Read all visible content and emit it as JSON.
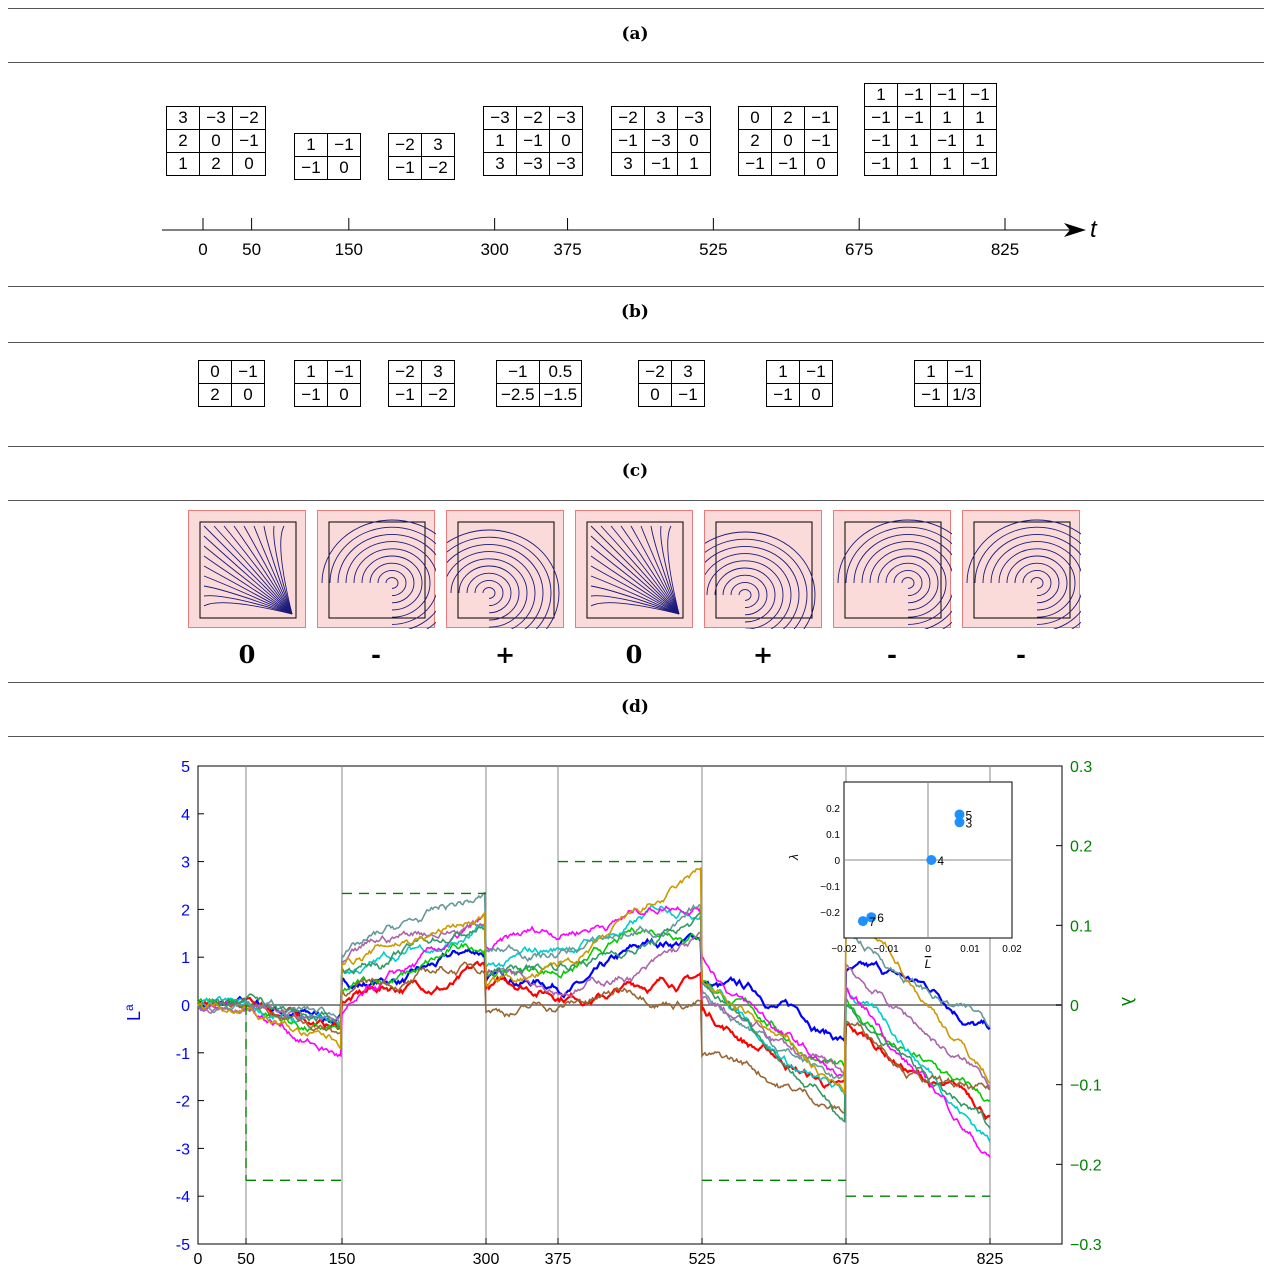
{
  "panels": {
    "a": "(a)",
    "b": "(b)",
    "c": "(c)",
    "d": "(d)"
  },
  "panel_a": {
    "axis_label": "t",
    "ticks": [
      "0",
      "50",
      "150",
      "300",
      "375",
      "525",
      "675",
      "825"
    ],
    "tick_values": [
      0,
      50,
      150,
      300,
      375,
      525,
      675,
      825
    ],
    "matrices": [
      [
        [
          "3",
          "−3",
          "−2"
        ],
        [
          "2",
          "0",
          "−1"
        ],
        [
          "1",
          "2",
          "0"
        ]
      ],
      [
        [
          "1",
          "−1"
        ],
        [
          "−1",
          "0"
        ]
      ],
      [
        [
          "−2",
          "3"
        ],
        [
          "−1",
          "−2"
        ]
      ],
      [
        [
          "−3",
          "−2",
          "−3"
        ],
        [
          "1",
          "−1",
          "0"
        ],
        [
          "3",
          "−3",
          "−3"
        ]
      ],
      [
        [
          "−2",
          "3",
          "−3"
        ],
        [
          "−1",
          "−3",
          "0"
        ],
        [
          "3",
          "−1",
          "1"
        ]
      ],
      [
        [
          "0",
          "2",
          "−1"
        ],
        [
          "2",
          "0",
          "−1"
        ],
        [
          "−1",
          "−1",
          "0"
        ]
      ],
      [
        [
          "1",
          "−1",
          "−1",
          "−1"
        ],
        [
          "−1",
          "−1",
          "1",
          "1"
        ],
        [
          "−1",
          "1",
          "−1",
          "1"
        ],
        [
          "−1",
          "1",
          "1",
          "−1"
        ]
      ]
    ]
  },
  "panel_b": {
    "matrices": [
      [
        [
          "0",
          "−1"
        ],
        [
          "2",
          "0"
        ]
      ],
      [
        [
          "1",
          "−1"
        ],
        [
          "−1",
          "0"
        ]
      ],
      [
        [
          "−2",
          "3"
        ],
        [
          "−1",
          "−2"
        ]
      ],
      [
        [
          "−1",
          "0.5"
        ],
        [
          "−2.5",
          "−1.5"
        ]
      ],
      [
        [
          "−2",
          "3"
        ],
        [
          "0",
          "−1"
        ]
      ],
      [
        [
          "1",
          "−1"
        ],
        [
          "−1",
          "0"
        ]
      ],
      [
        [
          "1",
          "−1"
        ],
        [
          "−1",
          "1/3"
        ]
      ]
    ]
  },
  "panel_c": {
    "signs": [
      "0",
      "-",
      "+",
      "0",
      "+",
      "-",
      "-"
    ],
    "flow_types": [
      "diag",
      "vortex",
      "vortex-high",
      "diag",
      "vortex-low",
      "vortex",
      "vortex"
    ]
  },
  "chart_data": [
    {
      "type": "line",
      "xlabel": "t",
      "ylabel_left": "L",
      "ylabel_left_sup": "a",
      "ylabel_right": "λ",
      "xlim": [
        0,
        900
      ],
      "ylim_left": [
        -5,
        5
      ],
      "ylim_right": [
        -0.3,
        0.3
      ],
      "xticks": [
        0,
        50,
        150,
        300,
        375,
        525,
        675,
        825
      ],
      "yticks_left": [
        5,
        4,
        3,
        2,
        1,
        0,
        -1,
        -2,
        -3,
        -4,
        -5
      ],
      "yticks_right": [
        "0.3",
        "0.2",
        "0.1",
        "0",
        "−0.1",
        "−0.2",
        "−0.3"
      ],
      "left_color": "#0000ff",
      "right_color": "#008000",
      "lambda_steps": [
        {
          "t0": 50,
          "t1": 150,
          "value": -0.22
        },
        {
          "t0": 150,
          "t1": 300,
          "value": 0.14
        },
        {
          "t0": 375,
          "t1": 525,
          "value": 0.18
        },
        {
          "t0": 525,
          "t1": 675,
          "value": -0.22
        },
        {
          "t0": 675,
          "t1": 825,
          "value": -0.24
        }
      ],
      "series_colors": [
        "#0000ff",
        "#ff0000",
        "#00cc00",
        "#00cccc",
        "#ff00ff",
        "#996633",
        "#669999",
        "#aa66aa",
        "#339966",
        "#cc9900"
      ]
    },
    {
      "type": "scatter",
      "xlabel": "L",
      "ylabel": "λ",
      "xlim": [
        -0.02,
        0.02
      ],
      "ylim": [
        -0.3,
        0.3
      ],
      "xticks": [
        "−0.02",
        "−0.01",
        "0",
        "0.01",
        "0.02"
      ],
      "yticks": [
        "0.2",
        "0.1",
        "0",
        "−0.1",
        "−0.2"
      ],
      "point_color": "#1e90ff",
      "points": [
        {
          "label": "5",
          "x": 0.0075,
          "y": 0.175
        },
        {
          "label": "3",
          "x": 0.0075,
          "y": 0.145
        },
        {
          "label": "4",
          "x": 0.0008,
          "y": 0.0
        },
        {
          "label": "6",
          "x": -0.0135,
          "y": -0.22
        },
        {
          "label": "7",
          "x": -0.0155,
          "y": -0.235
        }
      ]
    }
  ]
}
